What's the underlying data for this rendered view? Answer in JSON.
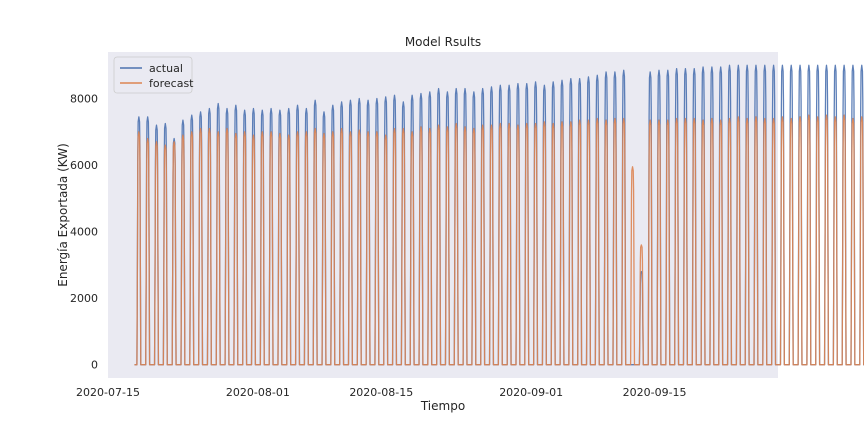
{
  "chart_data": {
    "type": "line",
    "title": "Model Rsults",
    "xlabel": "Tiempo",
    "ylabel": "Energía Exportada (KW)",
    "x_range": [
      "2020-07-15",
      "2020-09-29"
    ],
    "ylim": [
      -400,
      9400
    ],
    "x_ticks": [
      "2020-07-15",
      "2020-08-01",
      "2020-08-15",
      "2020-09-01",
      "2020-09-15"
    ],
    "y_ticks": [
      0,
      2000,
      4000,
      6000,
      8000
    ],
    "grid": false,
    "legend_position": "top-left",
    "background": "#eaeaf2",
    "series": [
      {
        "name": "actual",
        "color": "#4c72b0",
        "day_start": "2020-07-18",
        "baseline": 0,
        "daily_peaks": [
          7450,
          7450,
          7200,
          7250,
          6800,
          7350,
          7500,
          7600,
          7700,
          7850,
          7700,
          7800,
          7650,
          7700,
          7650,
          7700,
          7650,
          7700,
          7800,
          7700,
          7950,
          7600,
          7800,
          7900,
          7950,
          8000,
          7950,
          8000,
          8050,
          8100,
          7900,
          8100,
          8150,
          8200,
          8300,
          8200,
          8300,
          8300,
          8200,
          8300,
          8350,
          8400,
          8400,
          8450,
          8450,
          8500,
          8400,
          8500,
          8550,
          8600,
          8600,
          8650,
          8700,
          8800,
          8800,
          8850,
          0,
          2800,
          8800,
          8850,
          8850,
          8900,
          8900,
          8900,
          8950,
          8950,
          8950,
          9000,
          9000,
          9000,
          9000,
          9000,
          9000,
          9000,
          9000,
          9000,
          9000,
          9000,
          9000,
          9000,
          9000,
          9000,
          9000,
          9000,
          9000,
          9000,
          9000,
          9000,
          9000
        ]
      },
      {
        "name": "forecast",
        "color": "#dd8452",
        "day_start": "2020-07-18",
        "baseline": 0,
        "daily_peaks": [
          7000,
          6800,
          6700,
          6600,
          6700,
          6900,
          7000,
          7100,
          7100,
          7000,
          7100,
          6950,
          7000,
          6900,
          7000,
          7000,
          6950,
          6900,
          7000,
          7000,
          7100,
          6950,
          7000,
          7100,
          7000,
          7050,
          7000,
          7000,
          6900,
          7100,
          7100,
          7000,
          7150,
          7100,
          7200,
          7150,
          7250,
          7150,
          7100,
          7200,
          7200,
          7250,
          7250,
          7200,
          7250,
          7250,
          7300,
          7250,
          7300,
          7300,
          7350,
          7350,
          7400,
          7350,
          7400,
          7400,
          5950,
          3600,
          7350,
          7350,
          7350,
          7400,
          7400,
          7400,
          7350,
          7400,
          7350,
          7400,
          7450,
          7400,
          7450,
          7400,
          7400,
          7450,
          7400,
          7450,
          7500,
          7450,
          7500,
          7450,
          7500,
          7400,
          7450,
          7500,
          7500,
          7450,
          7500,
          7450,
          7400
        ]
      }
    ]
  }
}
